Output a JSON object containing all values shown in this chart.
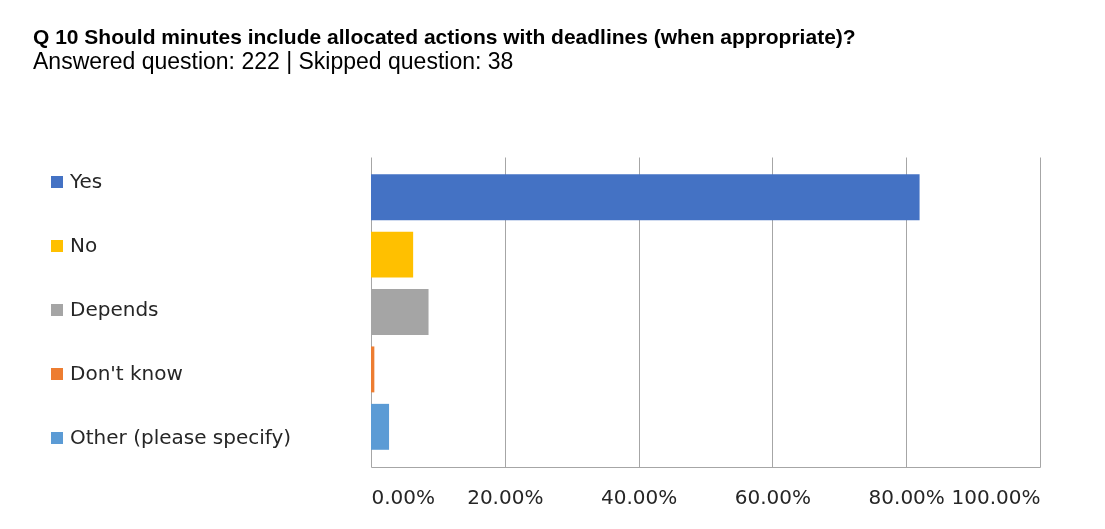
{
  "chart_data": {
    "type": "bar",
    "orientation": "horizontal",
    "title": "Q 10 Should minutes include allocated actions with deadlines (when appropriate)?",
    "subtitle": "Answered question: 222 | Skipped question: 38",
    "categories": [
      null
    ],
    "series": [
      {
        "name": "Yes",
        "color": "#4472c4",
        "values": [
          82.0
        ]
      },
      {
        "name": "No",
        "color": "#ffc000",
        "values": [
          6.3
        ]
      },
      {
        "name": "Depends",
        "color": "#a5a5a5",
        "values": [
          8.6
        ]
      },
      {
        "name": "Don't know",
        "color": "#ed7d31",
        "values": [
          0.5
        ]
      },
      {
        "name": "Other (please specify)",
        "color": "#5b9bd5",
        "values": [
          2.7
        ]
      }
    ],
    "xlim": [
      0,
      100
    ],
    "xticks": [
      {
        "value": 0,
        "label": "0.00%"
      },
      {
        "value": 20,
        "label": "20.00%"
      },
      {
        "value": 40,
        "label": "40.00%"
      },
      {
        "value": 60,
        "label": "60.00%"
      },
      {
        "value": 80,
        "label": "80.00%"
      },
      {
        "value": 100,
        "label": "100.00%"
      }
    ],
    "grid": "x",
    "legend": "left"
  }
}
